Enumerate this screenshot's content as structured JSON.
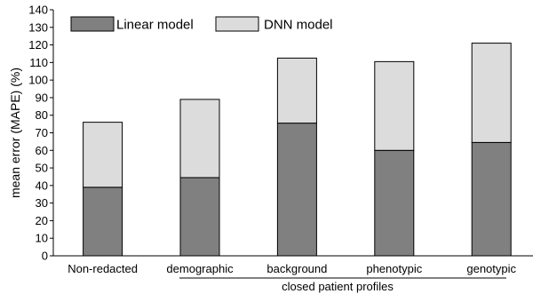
{
  "chart_data": {
    "type": "bar",
    "stacked": true,
    "categories": [
      "Non-redacted",
      "demographic",
      "background",
      "phenotypic",
      "genotypic"
    ],
    "series": [
      {
        "name": "Linear model",
        "values": [
          39,
          44.5,
          75.5,
          60,
          64.5
        ],
        "color": "#808080"
      },
      {
        "name": "DNN model",
        "values": [
          37,
          44.5,
          37,
          50.5,
          56.5
        ],
        "color": "#dcdcdc"
      }
    ],
    "ylabel": "mean error (MAPE) (%)",
    "xlabel": "",
    "group_label": "closed patient profiles",
    "ylim": [
      0,
      140
    ],
    "yticks": [
      0,
      10,
      20,
      30,
      40,
      50,
      60,
      70,
      80,
      90,
      100,
      110,
      120,
      130,
      140
    ],
    "grid": false,
    "legend": "top-left",
    "bar_edge_color": "#000000"
  }
}
